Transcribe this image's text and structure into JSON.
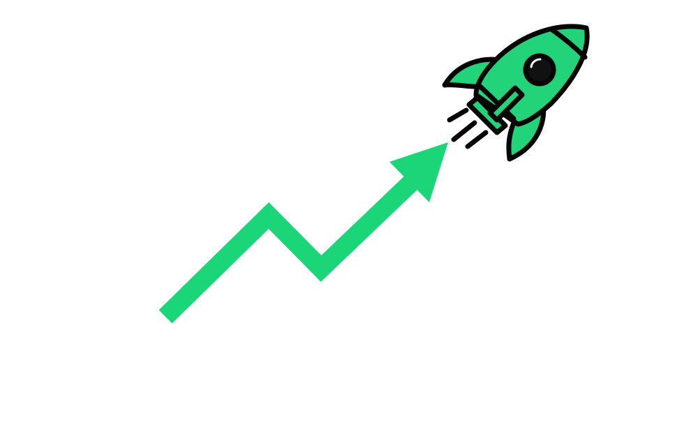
{
  "colors": {
    "background": "#ffffff",
    "growth_green": "#1ad679",
    "rocket_green": "#22d37a",
    "outline": "#050505",
    "window_glass": "#111111",
    "window_highlight": "#ffffff"
  },
  "icons": {
    "arrow": "growth-arrow-icon",
    "rocket": "rocket-icon"
  }
}
